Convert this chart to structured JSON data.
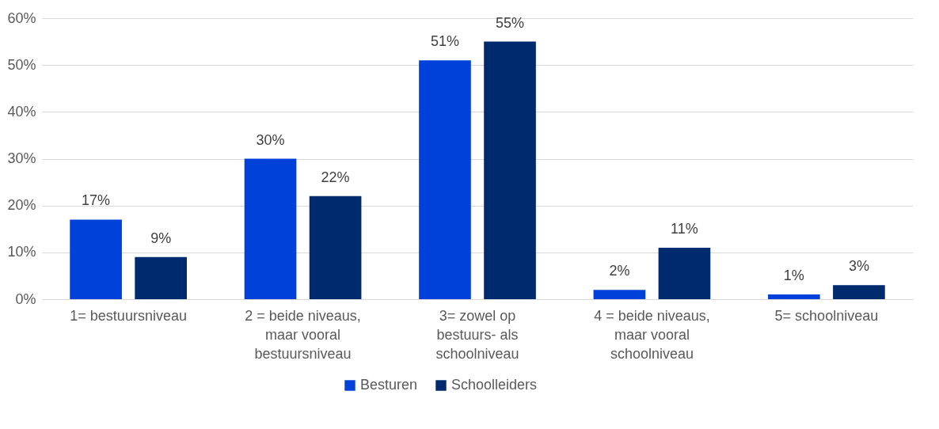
{
  "chart_data": {
    "type": "bar",
    "categories": [
      "1= bestuursniveau",
      "2 = beide niveaus, maar vooral bestuursniveau",
      "3= zowel op bestuurs- als schoolniveau",
      "4 = beide niveaus, maar vooral schoolniveau",
      "5= schoolniveau"
    ],
    "series": [
      {
        "name": "Besturen",
        "color": "#0041d9",
        "values": [
          17,
          30,
          51,
          2,
          1
        ],
        "value_labels": [
          "17%",
          "30%",
          "51%",
          "2%",
          "1%"
        ]
      },
      {
        "name": "Schoolleiders",
        "color": "#002a6e",
        "values": [
          9,
          22,
          55,
          11,
          3
        ],
        "value_labels": [
          "9%",
          "22%",
          "55%",
          "11%",
          "3%"
        ]
      }
    ],
    "ylim": [
      0,
      60
    ],
    "yticks": [
      {
        "value": 0,
        "label": "0%"
      },
      {
        "value": 10,
        "label": "10%"
      },
      {
        "value": 20,
        "label": "20%"
      },
      {
        "value": 30,
        "label": "30%"
      },
      {
        "value": 40,
        "label": "40%"
      },
      {
        "value": 50,
        "label": "50%"
      },
      {
        "value": 60,
        "label": "60%"
      }
    ],
    "grid": "y",
    "legend": "bottom"
  }
}
